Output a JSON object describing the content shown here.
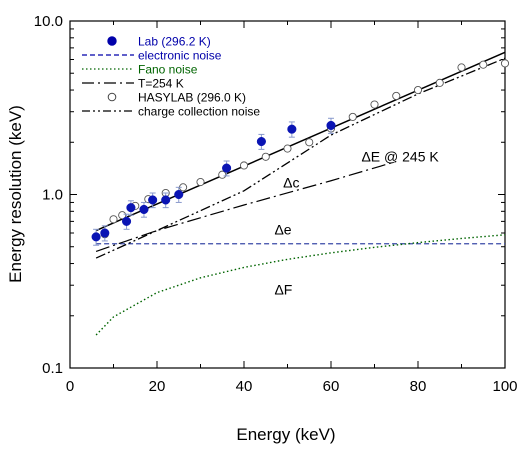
{
  "chart_data": {
    "type": "scatter",
    "title": "",
    "xlabel": "Energy  (keV)",
    "ylabel": "Energy  resolution  (keV)",
    "xlim": [
      0,
      100
    ],
    "ylim": [
      0.1,
      10
    ],
    "y_scale": "log",
    "grid": false,
    "legend_position": "top-left",
    "x_ticks": [
      0,
      20,
      40,
      60,
      80,
      100
    ],
    "x_tick_labels": [
      "0",
      "20",
      "40",
      "60",
      "80",
      "100"
    ],
    "y_ticks": [
      0.1,
      1.0,
      10.0
    ],
    "y_tick_labels": [
      "0.1",
      "1.0",
      "10.0"
    ],
    "legend": [
      {
        "label": "Lab  (296.2  K)",
        "color": "#0000aa",
        "marker": "filled-circle"
      },
      {
        "label": "electronic noise",
        "color": "#0000aa",
        "line": "dashed"
      },
      {
        "label": "Fano noise",
        "color": "#006400",
        "line": "dotted"
      },
      {
        "label": "T=254  K",
        "color": "#000000",
        "line": "dash-dot"
      },
      {
        "label": "HASYLAB (296.0  K)",
        "color": "#000000",
        "marker": "open-circle"
      },
      {
        "label": "charge collection noise",
        "color": "#000000",
        "line": "dash-dot-dot"
      }
    ],
    "annotations": [
      {
        "text": "ΔE @ 245 K",
        "x": 67,
        "y": 1.55
      },
      {
        "text": "Δc",
        "x": 49,
        "y": 1.1
      },
      {
        "text": "Δe",
        "x": 47,
        "y": 0.59
      },
      {
        "text": "ΔF",
        "x": 47,
        "y": 0.265
      }
    ],
    "series": [
      {
        "name": "Lab  (296.2  K)",
        "kind": "points",
        "x": [
          6,
          8,
          13,
          14,
          17,
          19,
          22,
          25,
          36,
          44,
          51,
          60
        ],
        "y": [
          0.57,
          0.6,
          0.7,
          0.84,
          0.82,
          0.93,
          0.93,
          1.0,
          1.42,
          2.02,
          2.38,
          2.5
        ],
        "err": [
          0.06,
          0.06,
          0.07,
          0.08,
          0.08,
          0.09,
          0.09,
          0.1,
          0.14,
          0.2,
          0.24,
          0.25
        ]
      },
      {
        "name": "HASYLAB (296.0  K)",
        "kind": "points",
        "x": [
          6,
          8,
          10,
          12,
          15,
          18,
          22,
          26,
          30,
          35,
          40,
          45,
          50,
          55,
          60,
          65,
          70,
          75,
          80,
          85,
          90,
          95,
          100
        ],
        "y": [
          0.57,
          0.59,
          0.72,
          0.76,
          0.86,
          0.94,
          1.02,
          1.1,
          1.18,
          1.3,
          1.47,
          1.65,
          1.84,
          2.0,
          2.4,
          2.8,
          3.3,
          3.7,
          4.0,
          4.4,
          5.4,
          5.6,
          5.7
        ]
      },
      {
        "name": "electronic noise",
        "kind": "line",
        "x": [
          6,
          100
        ],
        "y": [
          0.52,
          0.52
        ]
      },
      {
        "name": "Fano noise",
        "kind": "line",
        "x": [
          6,
          10,
          20,
          30,
          40,
          50,
          60,
          70,
          80,
          90,
          100
        ],
        "y": [
          0.155,
          0.197,
          0.272,
          0.331,
          0.38,
          0.423,
          0.461,
          0.496,
          0.528,
          0.558,
          0.586
        ]
      },
      {
        "name": "T=254  K",
        "kind": "line",
        "x": [
          6,
          20,
          40,
          60,
          75
        ],
        "y": [
          0.47,
          0.62,
          0.87,
          1.2,
          1.55
        ]
      },
      {
        "name": "charge collection noise",
        "kind": "line",
        "x": [
          6,
          20,
          40,
          60,
          80,
          100
        ],
        "y": [
          0.43,
          0.62,
          1.05,
          2.2,
          3.8,
          6.1
        ]
      },
      {
        "name": "",
        "kind": "line",
        "x": [
          6,
          100
        ],
        "y": [
          0.62,
          6.6
        ]
      }
    ]
  }
}
